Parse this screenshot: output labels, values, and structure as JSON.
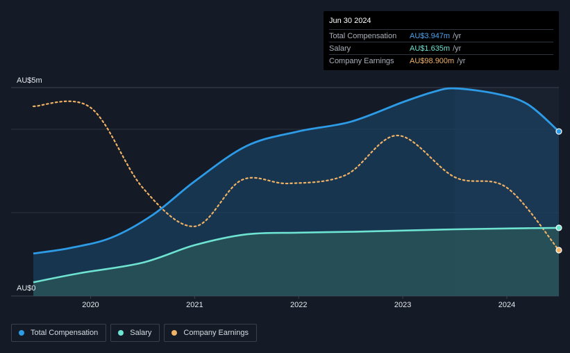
{
  "tooltip": {
    "date": "Jun 30 2024",
    "rows": [
      {
        "label": "Total Compensation",
        "value": "AU$3.947m",
        "unit": "/yr",
        "color": "#4aa3ee"
      },
      {
        "label": "Salary",
        "value": "AU$1.635m",
        "unit": "/yr",
        "color": "#6ee3d2"
      },
      {
        "label": "Company Earnings",
        "value": "AU$98.900m",
        "unit": "/yr",
        "color": "#f0b264"
      }
    ]
  },
  "legend": [
    {
      "label": "Total Compensation",
      "color": "#2d9be6"
    },
    {
      "label": "Salary",
      "color": "#6ee3d2"
    },
    {
      "label": "Company Earnings",
      "color": "#f0b264"
    }
  ],
  "chart_data": {
    "type": "line",
    "ylabel_top": "AU$5m",
    "ylabel_bottom": "AU$0",
    "ylim": [
      0,
      5
    ],
    "xlim": [
      2019.45,
      2024.5
    ],
    "x_ticks": [
      {
        "value": 2020,
        "label": "2020"
      },
      {
        "value": 2021,
        "label": "2021"
      },
      {
        "value": 2022,
        "label": "2022"
      },
      {
        "value": 2023,
        "label": "2023"
      },
      {
        "value": 2024,
        "label": "2024"
      }
    ],
    "shaded_region_start": 2023.5,
    "series": [
      {
        "name": "Total Compensation",
        "unit": "AU$m",
        "color": "#2d9be6",
        "x": [
          2019.45,
          2019.8,
          2020.2,
          2020.6,
          2021.0,
          2021.5,
          2022.0,
          2022.5,
          2023.0,
          2023.3,
          2023.5,
          2023.9,
          2024.2,
          2024.5
        ],
        "y": [
          1.02,
          1.15,
          1.4,
          1.95,
          2.75,
          3.6,
          3.95,
          4.18,
          4.65,
          4.9,
          4.98,
          4.85,
          4.6,
          3.947
        ]
      },
      {
        "name": "Salary",
        "unit": "AU$m",
        "color": "#6ee3d2",
        "x": [
          2019.45,
          2019.9,
          2020.5,
          2021.0,
          2021.5,
          2022.0,
          2022.5,
          2023.0,
          2023.5,
          2024.0,
          2024.5
        ],
        "y": [
          0.33,
          0.55,
          0.8,
          1.22,
          1.48,
          1.52,
          1.54,
          1.57,
          1.6,
          1.62,
          1.635
        ]
      },
      {
        "name": "Company Earnings",
        "unit": "scaled",
        "color": "#f0b264",
        "x": [
          2019.45,
          2020.0,
          2020.5,
          2021.0,
          2021.45,
          2021.9,
          2022.45,
          2022.95,
          2023.5,
          2024.0,
          2024.5
        ],
        "y": [
          4.55,
          4.52,
          2.6,
          1.67,
          2.78,
          2.7,
          2.9,
          3.85,
          2.85,
          2.6,
          1.1
        ]
      }
    ]
  }
}
